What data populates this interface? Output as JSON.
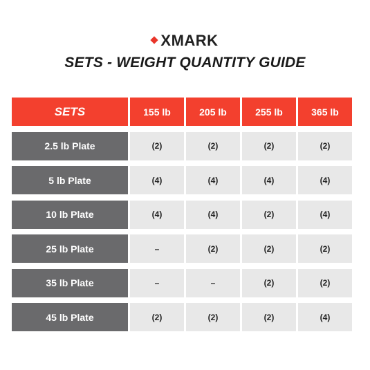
{
  "brand": {
    "mark": "diamond-icon",
    "name": "XMARK",
    "accent": "#e9352a"
  },
  "title": "SETS - WEIGHT QUANTITY GUIDE",
  "table": {
    "corner_label": "SETS",
    "columns": [
      "155 lb",
      "205 lb",
      "255 lb",
      "365 lb"
    ],
    "rows": [
      {
        "label": "2.5 lb Plate",
        "values": [
          "(2)",
          "(2)",
          "(2)",
          "(2)"
        ]
      },
      {
        "label": "5 lb Plate",
        "values": [
          "(4)",
          "(4)",
          "(4)",
          "(4)"
        ]
      },
      {
        "label": "10 lb Plate",
        "values": [
          "(4)",
          "(4)",
          "(2)",
          "(4)"
        ]
      },
      {
        "label": "25 lb Plate",
        "values": [
          "–",
          "(2)",
          "(2)",
          "(2)"
        ]
      },
      {
        "label": "35 lb Plate",
        "values": [
          "–",
          "–",
          "(2)",
          "(2)"
        ]
      },
      {
        "label": "45 lb Plate",
        "values": [
          "(2)",
          "(2)",
          "(2)",
          "(4)"
        ]
      }
    ]
  },
  "colors": {
    "header": "#f3402e",
    "row_label": "#6a6a6c",
    "value_cell": "#e8e8e8"
  }
}
